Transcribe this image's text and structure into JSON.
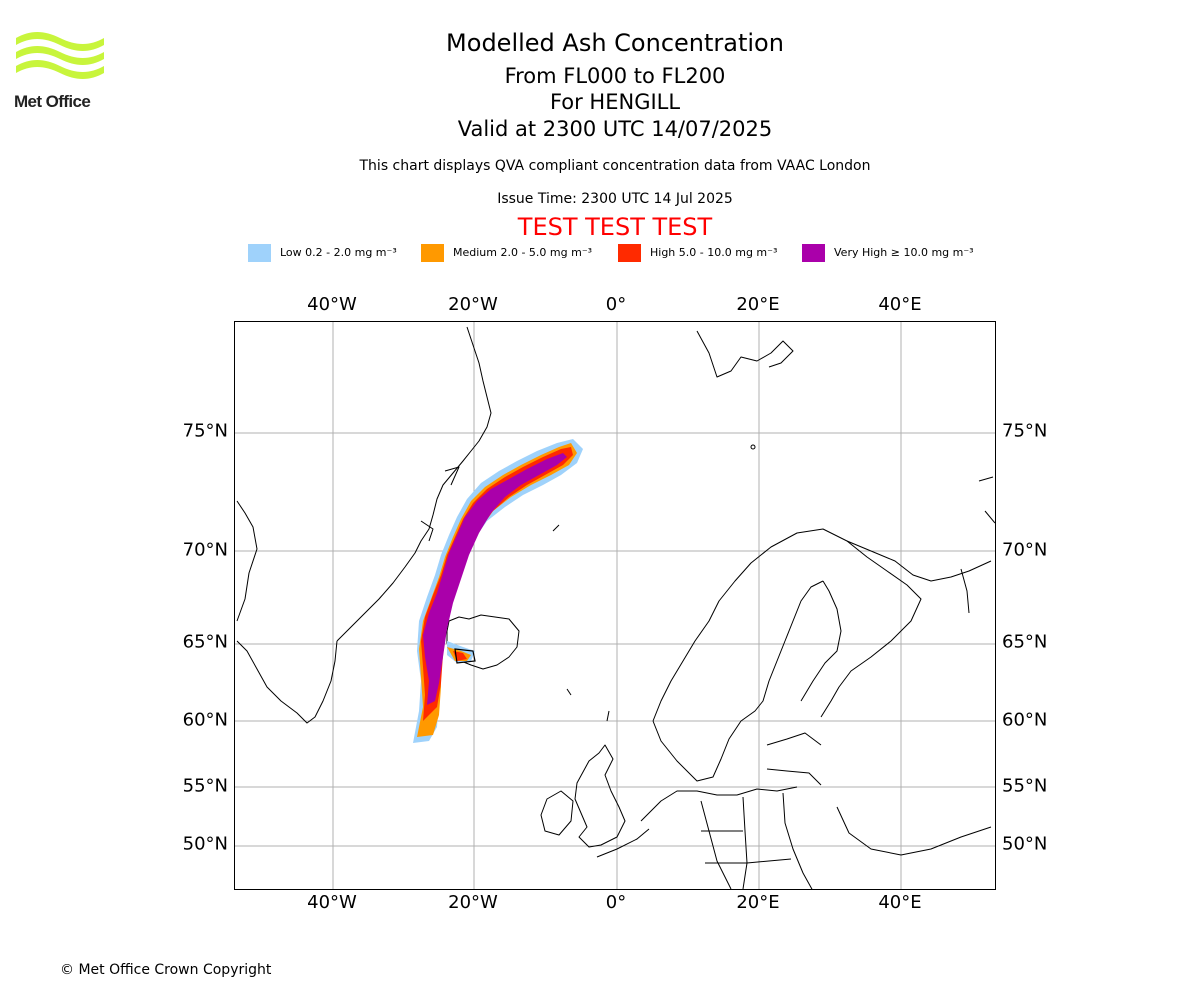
{
  "header": {
    "logo_text": "Met Office",
    "title": "Modelled Ash Concentration",
    "levels": "From FL000 to FL200",
    "location": "For HENGILL",
    "valid": "Valid at 2300 UTC 14/07/2025",
    "note": "This chart displays QVA compliant concentration data from VAAC London",
    "issue": "Issue Time: 2300 UTC 14 Jul 2025",
    "test_banner": "TEST TEST TEST"
  },
  "legend": [
    {
      "label": "Low 0.2 - 2.0 mg m⁻³",
      "color": "#9fd2fb"
    },
    {
      "label": "Medium 2.0 - 5.0 mg m⁻³",
      "color": "#ff9900"
    },
    {
      "label": "High 5.0 - 10.0 mg m⁻³",
      "color": "#ff2a00"
    },
    {
      "label": "Very High ≥ 10.0 mg m⁻³",
      "color": "#aa00aa"
    }
  ],
  "map": {
    "lon_ticks": [
      "40°W",
      "20°W",
      "0°",
      "20°E",
      "40°E"
    ],
    "lat_ticks": [
      "75°N",
      "70°N",
      "65°N",
      "60°N",
      "55°N",
      "50°N"
    ],
    "grid": true
  },
  "footer": {
    "copyright": "© Met Office Crown Copyright"
  }
}
